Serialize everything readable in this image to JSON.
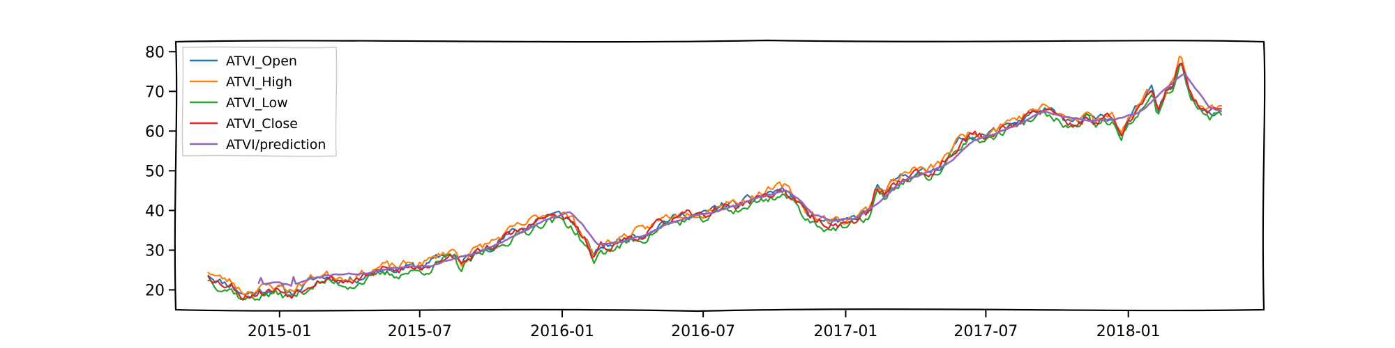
{
  "chart_data": {
    "type": "line",
    "title": "",
    "xlabel": "",
    "ylabel": "",
    "x_tick_labels": [
      "2015-01",
      "2015-07",
      "2016-01",
      "2016-07",
      "2017-01",
      "2017-07",
      "2018-01"
    ],
    "x_tick_dates": [
      "2015-01-01",
      "2015-07-01",
      "2016-01-01",
      "2016-07-01",
      "2017-01-01",
      "2017-07-01",
      "2018-01-01"
    ],
    "xlim": [
      "2014-08-20",
      "2018-06-25"
    ],
    "y_tick_labels": [
      "20",
      "30",
      "40",
      "50",
      "60",
      "70",
      "80"
    ],
    "y_ticks": [
      20,
      30,
      40,
      50,
      60,
      70,
      80
    ],
    "ylim": [
      15,
      82.5
    ],
    "grid": false,
    "legend_position": "top-left",
    "close_keypoints": [
      [
        "2014-10-01",
        23.8
      ],
      [
        "2014-10-15",
        22.0
      ],
      [
        "2014-11-01",
        21.0
      ],
      [
        "2014-11-15",
        18.6
      ],
      [
        "2014-12-01",
        19.2
      ],
      [
        "2014-12-15",
        19.8
      ],
      [
        "2015-01-01",
        20.0
      ],
      [
        "2015-01-15",
        18.9
      ],
      [
        "2015-02-01",
        20.7
      ],
      [
        "2015-02-15",
        22.5
      ],
      [
        "2015-03-01",
        23.0
      ],
      [
        "2015-03-15",
        22.6
      ],
      [
        "2015-04-01",
        22.2
      ],
      [
        "2015-04-15",
        23.0
      ],
      [
        "2015-05-01",
        24.0
      ],
      [
        "2015-05-15",
        25.0
      ],
      [
        "2015-06-01",
        24.8
      ],
      [
        "2015-06-15",
        25.5
      ],
      [
        "2015-07-01",
        25.5
      ],
      [
        "2015-07-15",
        26.5
      ],
      [
        "2015-08-01",
        28.5
      ],
      [
        "2015-08-15",
        29.0
      ],
      [
        "2015-08-24",
        25.8
      ],
      [
        "2015-09-01",
        28.0
      ],
      [
        "2015-09-15",
        29.5
      ],
      [
        "2015-10-01",
        31.0
      ],
      [
        "2015-10-15",
        32.5
      ],
      [
        "2015-11-01",
        34.5
      ],
      [
        "2015-11-15",
        35.5
      ],
      [
        "2015-12-01",
        37.5
      ],
      [
        "2015-12-15",
        38.5
      ],
      [
        "2016-01-01",
        38.5
      ],
      [
        "2016-01-15",
        36.5
      ],
      [
        "2016-02-01",
        32.0
      ],
      [
        "2016-02-10",
        27.5
      ],
      [
        "2016-02-20",
        30.5
      ],
      [
        "2016-03-01",
        31.0
      ],
      [
        "2016-03-15",
        32.0
      ],
      [
        "2016-04-01",
        33.5
      ],
      [
        "2016-04-15",
        33.8
      ],
      [
        "2016-05-01",
        36.0
      ],
      [
        "2016-05-15",
        37.5
      ],
      [
        "2016-06-01",
        38.0
      ],
      [
        "2016-06-15",
        39.0
      ],
      [
        "2016-07-01",
        38.5
      ],
      [
        "2016-07-15",
        40.0
      ],
      [
        "2016-08-01",
        41.5
      ],
      [
        "2016-08-15",
        41.0
      ],
      [
        "2016-09-01",
        42.5
      ],
      [
        "2016-09-15",
        43.5
      ],
      [
        "2016-10-01",
        44.5
      ],
      [
        "2016-10-15",
        45.0
      ],
      [
        "2016-11-01",
        41.5
      ],
      [
        "2016-11-15",
        38.5
      ],
      [
        "2016-12-01",
        37.0
      ],
      [
        "2016-12-15",
        36.5
      ],
      [
        "2017-01-01",
        36.5
      ],
      [
        "2017-01-15",
        38.0
      ],
      [
        "2017-02-01",
        39.5
      ],
      [
        "2017-02-10",
        45.5
      ],
      [
        "2017-02-20",
        44.0
      ],
      [
        "2017-03-01",
        46.0
      ],
      [
        "2017-03-15",
        48.0
      ],
      [
        "2017-04-01",
        49.5
      ],
      [
        "2017-04-15",
        49.0
      ],
      [
        "2017-05-01",
        50.5
      ],
      [
        "2017-05-15",
        54.0
      ],
      [
        "2017-06-01",
        58.0
      ],
      [
        "2017-06-15",
        59.0
      ],
      [
        "2017-07-01",
        58.5
      ],
      [
        "2017-07-15",
        60.0
      ],
      [
        "2017-08-01",
        62.0
      ],
      [
        "2017-08-15",
        62.5
      ],
      [
        "2017-09-01",
        64.5
      ],
      [
        "2017-09-15",
        65.0
      ],
      [
        "2017-10-01",
        63.5
      ],
      [
        "2017-10-15",
        62.0
      ],
      [
        "2017-11-01",
        61.5
      ],
      [
        "2017-11-08",
        64.0
      ],
      [
        "2017-11-20",
        62.0
      ],
      [
        "2017-12-01",
        63.5
      ],
      [
        "2017-12-15",
        62.5
      ],
      [
        "2017-12-22",
        58.0
      ],
      [
        "2018-01-01",
        62.5
      ],
      [
        "2018-01-15",
        66.0
      ],
      [
        "2018-02-01",
        70.0
      ],
      [
        "2018-02-08",
        64.0
      ],
      [
        "2018-02-20",
        70.5
      ],
      [
        "2018-03-01",
        72.0
      ],
      [
        "2018-03-10",
        78.5
      ],
      [
        "2018-03-20",
        70.0
      ],
      [
        "2018-04-01",
        66.0
      ],
      [
        "2018-04-15",
        64.5
      ],
      [
        "2018-05-01",
        65.0
      ]
    ],
    "prediction_keypoints": [
      [
        "2014-12-05",
        21.8
      ],
      [
        "2014-12-08",
        23.0
      ],
      [
        "2014-12-10",
        21.5
      ],
      [
        "2015-01-01",
        21.8
      ],
      [
        "2015-01-18",
        21.0
      ],
      [
        "2015-01-20",
        25.5
      ],
      [
        "2015-01-22",
        21.5
      ],
      [
        "2015-02-15",
        23.0
      ],
      [
        "2015-03-15",
        24.0
      ],
      [
        "2015-04-15",
        24.0
      ],
      [
        "2015-05-15",
        25.0
      ],
      [
        "2015-06-15",
        26.0
      ],
      [
        "2015-07-15",
        26.0
      ],
      [
        "2015-08-15",
        28.0
      ],
      [
        "2015-09-15",
        29.5
      ],
      [
        "2015-10-15",
        32.0
      ],
      [
        "2015-11-15",
        35.0
      ],
      [
        "2015-12-15",
        38.0
      ],
      [
        "2016-01-10",
        39.5
      ],
      [
        "2016-01-25",
        37.0
      ],
      [
        "2016-02-15",
        31.5
      ],
      [
        "2016-03-15",
        32.0
      ],
      [
        "2016-04-15",
        33.5
      ],
      [
        "2016-05-15",
        36.5
      ],
      [
        "2016-06-15",
        38.5
      ],
      [
        "2016-07-15",
        39.5
      ],
      [
        "2016-08-15",
        41.5
      ],
      [
        "2016-09-15",
        43.5
      ],
      [
        "2016-10-15",
        45.0
      ],
      [
        "2016-11-01",
        43.0
      ],
      [
        "2016-11-20",
        39.0
      ],
      [
        "2016-12-15",
        37.5
      ],
      [
        "2017-01-15",
        38.0
      ],
      [
        "2017-02-15",
        42.5
      ],
      [
        "2017-03-15",
        47.5
      ],
      [
        "2017-04-15",
        49.5
      ],
      [
        "2017-05-15",
        52.0
      ],
      [
        "2017-06-15",
        57.5
      ],
      [
        "2017-07-15",
        59.5
      ],
      [
        "2017-08-15",
        62.0
      ],
      [
        "2017-09-15",
        65.0
      ],
      [
        "2017-10-15",
        63.5
      ],
      [
        "2017-11-15",
        62.5
      ],
      [
        "2017-12-15",
        63.0
      ],
      [
        "2018-01-15",
        64.5
      ],
      [
        "2018-02-01",
        67.5
      ],
      [
        "2018-02-20",
        71.0
      ],
      [
        "2018-03-15",
        74.5
      ],
      [
        "2018-04-01",
        70.0
      ],
      [
        "2018-04-15",
        66.0
      ],
      [
        "2018-05-01",
        65.0
      ]
    ],
    "series": [
      {
        "name": "ATVI_Open",
        "color": "#1f77b4",
        "offset": 0.3,
        "seed": 11,
        "noise": 0.9
      },
      {
        "name": "ATVI_High",
        "color": "#ff7f0e",
        "offset": 1.0,
        "seed": 23,
        "noise": 0.9
      },
      {
        "name": "ATVI_Low",
        "color": "#2ca02c",
        "offset": -1.0,
        "seed": 37,
        "noise": 0.9
      },
      {
        "name": "ATVI_Close",
        "color": "#d62728",
        "offset": 0.0,
        "seed": 53,
        "noise": 0.9
      },
      {
        "name": "ATVI/prediction",
        "color": "#9467bd",
        "offset": 0.0,
        "seed": 71,
        "noise": 0.15
      }
    ]
  }
}
